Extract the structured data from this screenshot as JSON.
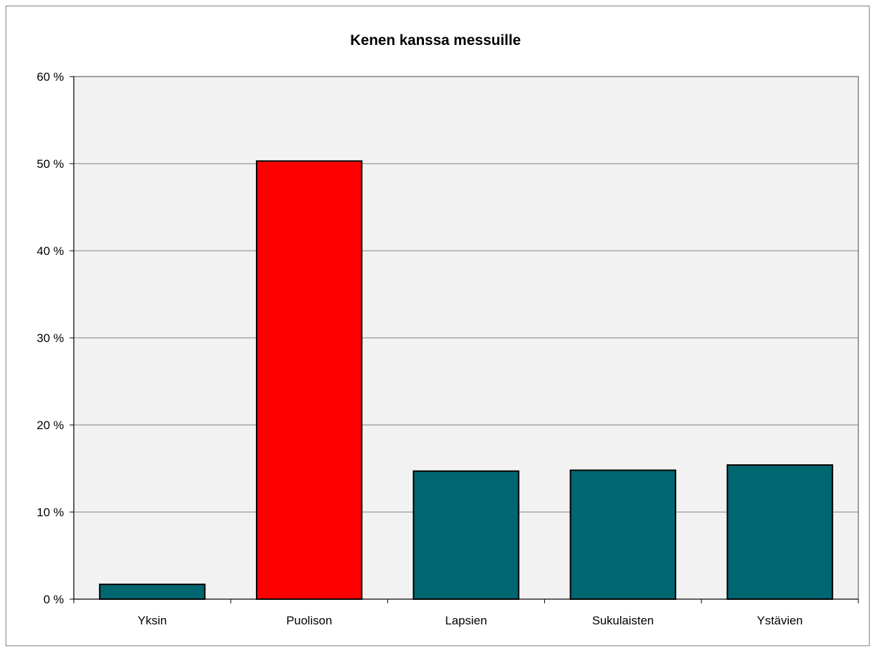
{
  "chart_data": {
    "type": "bar",
    "title": "Kenen kanssa messuille",
    "xlabel": "",
    "ylabel": "",
    "categories": [
      "Yksin",
      "Puolison",
      "Lapsien",
      "Sukulaisten",
      "Ystävien"
    ],
    "values": [
      1.7,
      50.3,
      14.7,
      14.8,
      15.4
    ],
    "ylim": [
      0,
      60
    ],
    "yticks": [
      0,
      10,
      20,
      30,
      40,
      50,
      60
    ],
    "ytick_labels": [
      "0 %",
      "10 %",
      "20 %",
      "30 %",
      "40 %",
      "50 %",
      "60 %"
    ],
    "grid": true,
    "colors": [
      "#006670",
      "#ff0000",
      "#006670",
      "#006670",
      "#006670"
    ],
    "plot_background": "#f2f2f2",
    "legend": "none"
  }
}
